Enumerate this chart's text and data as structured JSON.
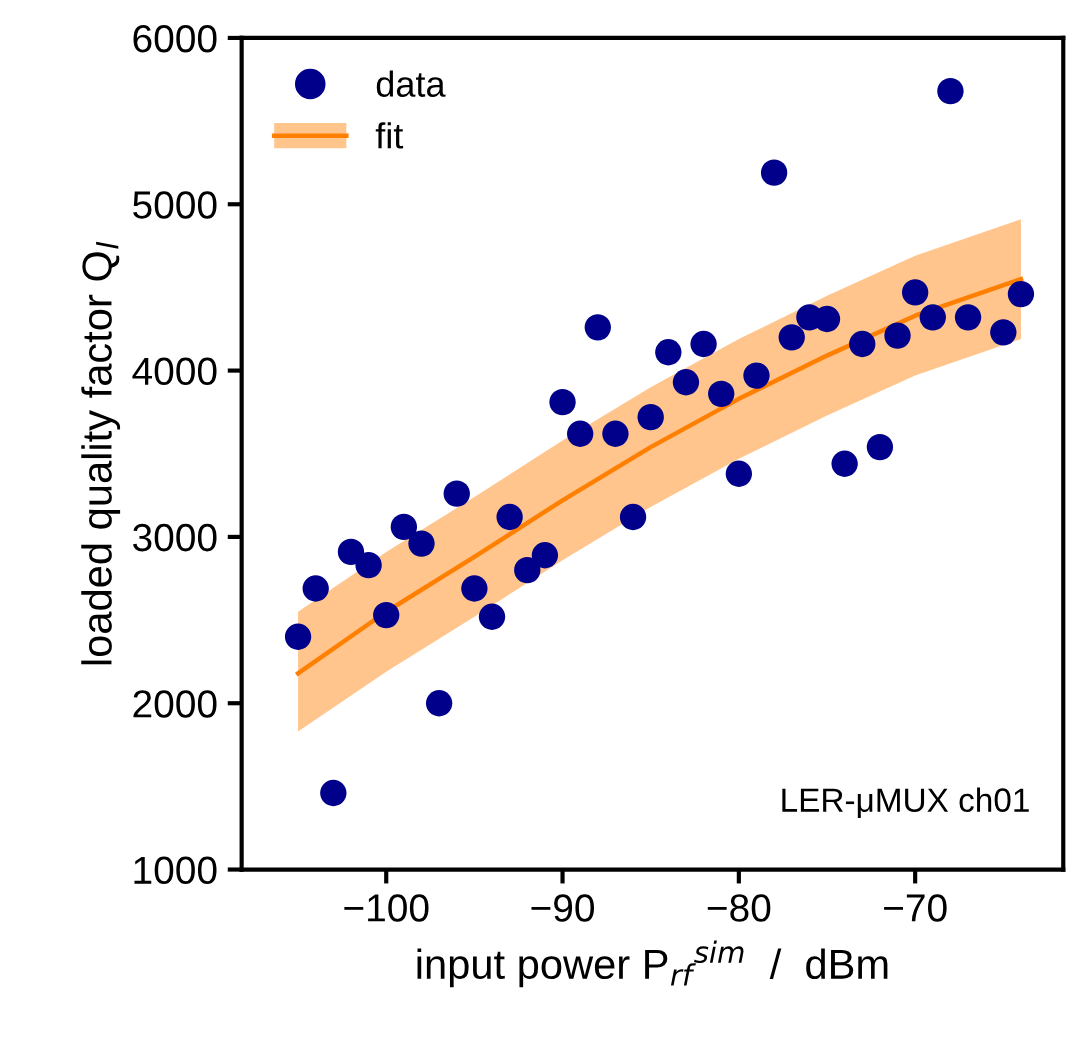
{
  "chart_data": {
    "type": "scatter",
    "xlabel": "input power P$_{rf}$$^{sim}$  /  dBm",
    "ylabel": "loaded quality factor Q$_{l}$",
    "xlim": [
      -108.2,
      -61.6
    ],
    "xticks": [
      {
        "value": -100,
        "label": "−100"
      },
      {
        "value": -90,
        "label": "−90"
      },
      {
        "value": -80,
        "label": "−80"
      },
      {
        "value": -70,
        "label": "−70"
      }
    ],
    "ylim": [
      1000,
      6000
    ],
    "yticks": [
      1000,
      2000,
      3000,
      4000,
      5000,
      6000
    ],
    "grid": false,
    "legend": "top left",
    "annotations": [
      "LER-μMUX ch01"
    ],
    "series": [
      {
        "name": "data",
        "color": "#00008b",
        "marker": "circle",
        "x": [
          -105,
          -104,
          -103,
          -102,
          -101,
          -100,
          -99,
          -98,
          -97,
          -96,
          -95,
          -94,
          -93,
          -92,
          -91,
          -90,
          -89,
          -88,
          -87,
          -86,
          -85,
          -84,
          -83,
          -82,
          -81,
          -80,
          -79,
          -78,
          -77,
          -76,
          -75,
          -74,
          -73,
          -72,
          -71,
          -70,
          -69,
          -68,
          -67,
          -65,
          -64
        ],
        "values": [
          2400,
          2690,
          1460,
          2910,
          2830,
          2530,
          3060,
          2960,
          2000,
          3260,
          2690,
          2520,
          3120,
          2800,
          2890,
          3810,
          3620,
          4260,
          3620,
          3120,
          3720,
          4110,
          3930,
          4160,
          3860,
          3380,
          3970,
          5190,
          4200,
          4320,
          4310,
          3440,
          4160,
          3540,
          4210,
          4470,
          4320,
          5680,
          4320,
          4230,
          4460
        ]
      },
      {
        "name": "fit",
        "type": "line",
        "color": "#ff7f00",
        "line_style": "solid",
        "x": [
          -105,
          -100,
          -95,
          -90,
          -85,
          -80,
          -75,
          -70,
          -64
        ],
        "values": [
          2180,
          2550,
          2880,
          3220,
          3540,
          3830,
          4090,
          4330,
          4550
        ],
        "lower": [
          1830,
          2190,
          2520,
          2860,
          3180,
          3470,
          3730,
          3970,
          4190
        ],
        "upper": [
          2550,
          2910,
          3240,
          3580,
          3900,
          4190,
          4450,
          4690,
          4910
        ]
      }
    ]
  }
}
